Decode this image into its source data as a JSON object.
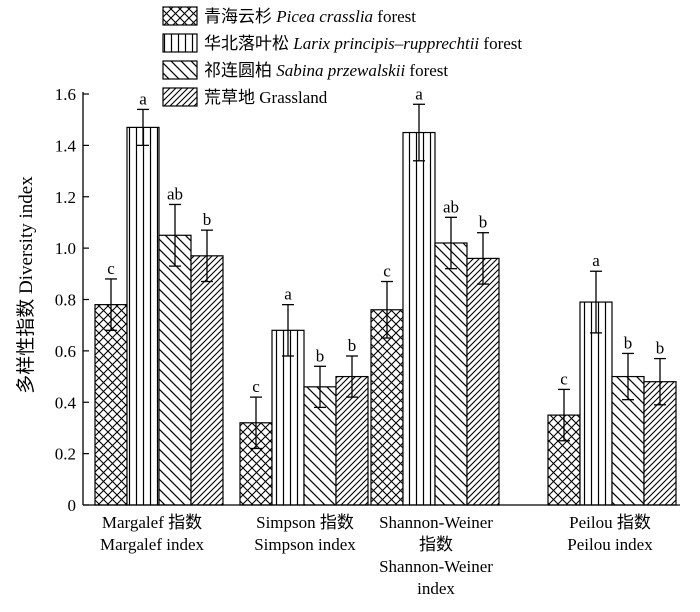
{
  "chart_data": {
    "type": "bar",
    "ylabel": "多样性指数 Diversity index",
    "ylim": [
      0,
      1.6
    ],
    "yticks": [
      "0",
      "0.2",
      "0.4",
      "0.6",
      "0.8",
      "1.0",
      "1.2",
      "1.4",
      "1.6"
    ],
    "yticks_values": [
      0,
      0.2,
      0.4,
      0.6,
      0.8,
      1.0,
      1.2,
      1.4,
      1.6
    ],
    "categories": [
      [
        "Margalef 指数",
        "Margalef index"
      ],
      [
        "Simpson 指数",
        "Simpson index"
      ],
      [
        "Shannon-Weiner",
        "指数",
        "Shannon-Weiner",
        "index"
      ],
      [
        "Peilou 指数",
        "Peilou index"
      ]
    ],
    "legend_position": "top",
    "series": [
      {
        "name_cn": "青海云杉",
        "name_latin": "Picea crasslia",
        "name_suffix": "forest",
        "pattern": "crosshatch",
        "values": [
          0.78,
          0.32,
          0.76,
          0.35
        ],
        "errors": [
          0.1,
          0.1,
          0.11,
          0.1
        ],
        "letters": [
          "c",
          "c",
          "c",
          "c"
        ]
      },
      {
        "name_cn": "华北落叶松",
        "name_latin": "Larix principis–rupprechtii",
        "name_suffix": "forest",
        "pattern": "vertical",
        "values": [
          1.47,
          0.68,
          1.45,
          0.79
        ],
        "errors": [
          0.07,
          0.1,
          0.11,
          0.12
        ],
        "letters": [
          "a",
          "a",
          "a",
          "a"
        ]
      },
      {
        "name_cn": "祁连圆柏",
        "name_latin": "Sabina przewalskii",
        "name_suffix": "forest",
        "pattern": "backslash",
        "values": [
          1.05,
          0.46,
          1.02,
          0.5
        ],
        "errors": [
          0.12,
          0.08,
          0.1,
          0.09
        ],
        "letters": [
          "ab",
          "b",
          "ab",
          "b"
        ]
      },
      {
        "name_cn": "荒草地",
        "name_latin": "",
        "name_suffix": "Grassland",
        "pattern": "slash",
        "values": [
          0.97,
          0.5,
          0.96,
          0.48
        ],
        "errors": [
          0.1,
          0.08,
          0.1,
          0.09
        ],
        "letters": [
          "b",
          "b",
          "b",
          "b"
        ]
      }
    ]
  }
}
